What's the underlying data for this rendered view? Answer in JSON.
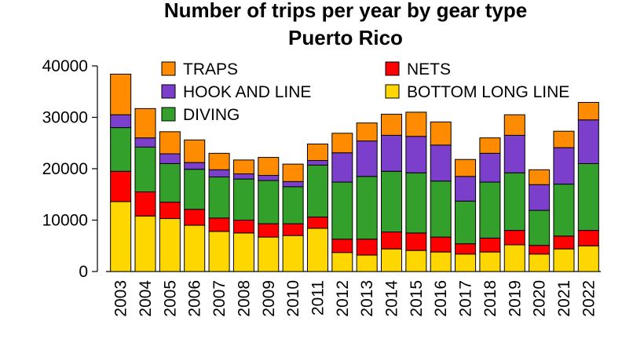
{
  "chart_data": {
    "type": "bar",
    "stacked": true,
    "title": "Number of trips per year by gear type",
    "subtitle": "Puerto Rico",
    "xlabel": "",
    "ylabel": "",
    "ylim": [
      0,
      40000
    ],
    "yticks": [
      0,
      10000,
      20000,
      30000,
      40000
    ],
    "grid": false,
    "legend_position": "top",
    "categories": [
      "2003",
      "2004",
      "2005",
      "2006",
      "2007",
      "2008",
      "2009",
      "2010",
      "2011",
      "2012",
      "2013",
      "2014",
      "2015",
      "2016",
      "2017",
      "2018",
      "2019",
      "2020",
      "2021",
      "2022"
    ],
    "series": [
      {
        "name": "BOTTOM LONG LINE",
        "color": "#FFD700",
        "values": [
          13600,
          10800,
          10300,
          9000,
          7800,
          7500,
          6700,
          7000,
          8400,
          3700,
          3200,
          4400,
          4100,
          3800,
          3400,
          3800,
          5200,
          3400,
          4400,
          5000
        ]
      },
      {
        "name": "NETS",
        "color": "#FF0000",
        "values": [
          5900,
          4700,
          3200,
          3100,
          2600,
          2500,
          2600,
          2300,
          2200,
          2600,
          3100,
          3300,
          3400,
          2900,
          2000,
          2700,
          2800,
          1700,
          2500,
          3000
        ]
      },
      {
        "name": "DIVING",
        "color": "#33A02C",
        "values": [
          8500,
          8700,
          7500,
          7800,
          8000,
          8000,
          8400,
          7200,
          10100,
          11100,
          12200,
          11800,
          11700,
          10900,
          8300,
          10900,
          11200,
          6800,
          10100,
          13000
        ]
      },
      {
        "name": "HOOK AND LINE",
        "color": "#7B3FCC",
        "values": [
          2500,
          1800,
          1900,
          1300,
          1400,
          1000,
          1000,
          1000,
          900,
          5700,
          6900,
          7000,
          7100,
          7000,
          4800,
          5600,
          7300,
          5000,
          7100,
          8500
        ]
      },
      {
        "name": "TRAPS",
        "color": "#FF8C00",
        "values": [
          7900,
          5700,
          4300,
          4400,
          3200,
          2700,
          3500,
          3400,
          3200,
          3800,
          3500,
          4100,
          4700,
          4500,
          3300,
          3000,
          4000,
          2900,
          3200,
          3400
        ]
      }
    ],
    "legend": {
      "rows": [
        [
          "TRAPS",
          "NETS"
        ],
        [
          "HOOK AND LINE",
          "BOTTOM LONG LINE"
        ],
        [
          "DIVING"
        ]
      ]
    }
  }
}
